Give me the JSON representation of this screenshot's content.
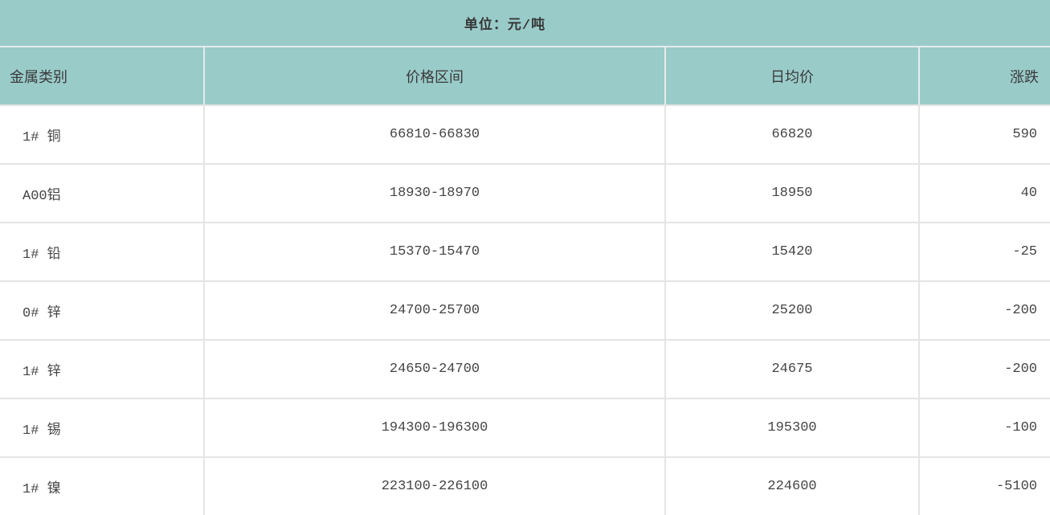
{
  "title": "单位：元/吨",
  "colors": {
    "band_teal": "#99cbc9",
    "border_light": "#e4e4e4",
    "text_dark": "#3f3f3f"
  },
  "table": {
    "columns": [
      {
        "key": "metal",
        "label": "金属类别"
      },
      {
        "key": "range",
        "label": "价格区间"
      },
      {
        "key": "avg",
        "label": "日均价"
      },
      {
        "key": "change",
        "label": "涨跌"
      }
    ],
    "rows": [
      {
        "metal": "1# 铜",
        "range": "66810-66830",
        "avg": "66820",
        "change": "590"
      },
      {
        "metal": "A00铝",
        "range": "18930-18970",
        "avg": "18950",
        "change": "40"
      },
      {
        "metal": "1# 铅",
        "range": "15370-15470",
        "avg": "15420",
        "change": "-25"
      },
      {
        "metal": "0# 锌",
        "range": "24700-25700",
        "avg": "25200",
        "change": "-200"
      },
      {
        "metal": "1# 锌",
        "range": "24650-24700",
        "avg": "24675",
        "change": "-200"
      },
      {
        "metal": "1# 锡",
        "range": "194300-196300",
        "avg": "195300",
        "change": "-100"
      },
      {
        "metal": "1# 镍",
        "range": "223100-226100",
        "avg": "224600",
        "change": "-5100"
      }
    ]
  },
  "chart_data": {
    "type": "table",
    "title": "单位：元/吨",
    "columns": [
      "金属类别",
      "价格区间",
      "日均价",
      "涨跌"
    ],
    "rows": [
      [
        "1# 铜",
        "66810-66830",
        66820,
        590
      ],
      [
        "A00铝",
        "18930-18970",
        18950,
        40
      ],
      [
        "1# 铅",
        "15370-15470",
        15420,
        -25
      ],
      [
        "0# 锌",
        "24700-25700",
        25200,
        -200
      ],
      [
        "1# 锌",
        "24650-24700",
        24675,
        -200
      ],
      [
        "1# 锡",
        "194300-196300",
        195300,
        -100
      ],
      [
        "1# 镍",
        "223100-226100",
        224600,
        -5100
      ]
    ]
  }
}
